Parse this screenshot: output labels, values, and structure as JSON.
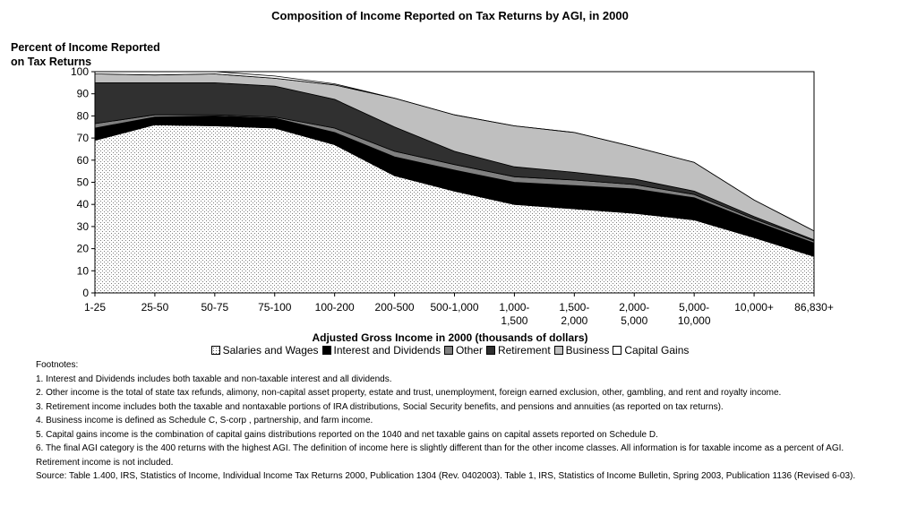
{
  "chart_data": {
    "type": "area",
    "title": "Composition of Income Reported on Tax Returns by AGI, in 2000",
    "ylabel": [
      "Percent of Income Reported",
      "on Tax Returns"
    ],
    "xlabel": "Adjusted Gross Income in 2000 (thousands of dollars)",
    "ylim": [
      0,
      100
    ],
    "yticks": [
      0,
      10,
      20,
      30,
      40,
      50,
      60,
      70,
      80,
      90,
      100
    ],
    "categories": [
      [
        "1-25"
      ],
      [
        "25-50"
      ],
      [
        "50-75"
      ],
      [
        "75-100"
      ],
      [
        "100-200"
      ],
      [
        "200-500"
      ],
      [
        "500-1,000"
      ],
      [
        "1,000-",
        "1,500"
      ],
      [
        "1,500-",
        "2,000"
      ],
      [
        "2,000-",
        "5,000"
      ],
      [
        "5,000-",
        "10,000"
      ],
      [
        "10,000+"
      ],
      [
        "86,830+"
      ]
    ],
    "stacked": true,
    "grid": false,
    "legend": "bottom",
    "series": [
      {
        "name": "Salaries and Wages",
        "color": "#ffffff",
        "pattern": "dots",
        "values": [
          69,
          76,
          75.5,
          74.5,
          67,
          53,
          46,
          40,
          38,
          36,
          33,
          25,
          16.5
        ]
      },
      {
        "name": "Interest and Dividends",
        "color": "#000000",
        "values": [
          5.5,
          3.5,
          4.5,
          4.5,
          5.5,
          8.5,
          9.5,
          10,
          10.5,
          11,
          10,
          7.5,
          6
        ]
      },
      {
        "name": "Other",
        "color": "#808080",
        "values": [
          2,
          1,
          0.5,
          0.5,
          2,
          2.5,
          2.5,
          2.5,
          2.5,
          2,
          1.5,
          1,
          1
        ]
      },
      {
        "name": "Retirement",
        "color": "#303030",
        "values": [
          18.5,
          14.5,
          14.5,
          14,
          13,
          11,
          6,
          4.5,
          3.5,
          2.5,
          1.5,
          1,
          0.5
        ]
      },
      {
        "name": "Business",
        "color": "#bfbfbf",
        "values": [
          4,
          3.5,
          4,
          3.5,
          6.5,
          13,
          16.5,
          18.5,
          18,
          14.5,
          13,
          7.5,
          4
        ]
      },
      {
        "name": "Capital Gains",
        "color": "#ffffff",
        "values": [
          1,
          1.5,
          1,
          1,
          0.5,
          0,
          0,
          0,
          0,
          0,
          0,
          0,
          0
        ]
      }
    ]
  },
  "footnotes": [
    "Footnotes:",
    "1. Interest and Dividends includes both taxable and non-taxable interest and all dividends.",
    "2.  Other income is the total of state tax refunds, alimony, non-capital asset property, estate and trust, unemployment, foreign earned exclusion, other, gambling, and rent and royalty income.",
    "3.  Retirement income includes both the taxable and nontaxable portions of IRA distributions, Social Security benefits, and pensions and annuities (as reported on tax returns).",
    "4.  Business income is defined as Schedule C, S-corp , partnership, and farm income.",
    "5.  Capital gains income is the combination of capital gains distributions reported on the 1040 and net taxable gains on capital assets reported on Schedule D.",
    "6.  The final AGI category is the 400 returns with the highest AGI.  The definition of income here is slightly different than for the other income classes.  All information is for taxable income as a percent of AGI.  Retirement income is not included.",
    "Source:  Table 1.400, IRS, Statistics of Income, Individual Income Tax Returns 2000, Publication 1304 (Rev. 0402003).  Table 1, IRS, Statistics of Income Bulletin, Spring 2003, Publication 1136 (Revised 6-03)."
  ]
}
